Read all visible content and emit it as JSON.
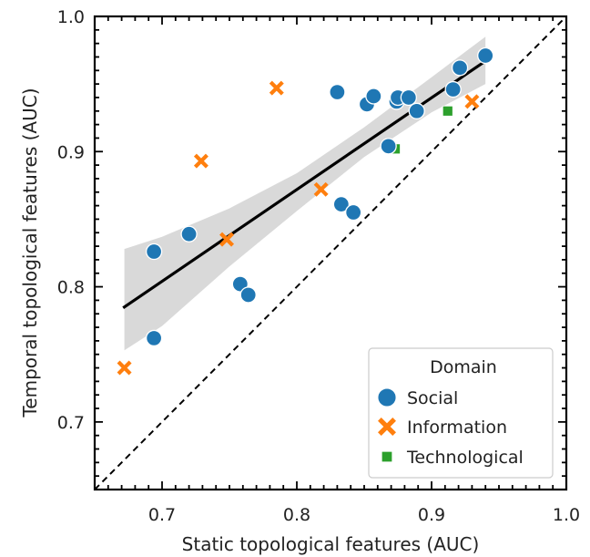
{
  "chart_data": {
    "type": "scatter",
    "title": "",
    "xlabel": "Static topological features (AUC)",
    "ylabel": "Temporal topological features (AUC)",
    "xlim": [
      0.65,
      1.0
    ],
    "ylim": [
      0.65,
      1.0
    ],
    "xticks": [
      {
        "value": 0.7,
        "label": "0.7"
      },
      {
        "value": 0.8,
        "label": "0.8"
      },
      {
        "value": 0.9,
        "label": "0.9"
      },
      {
        "value": 1.0,
        "label": "1.0"
      }
    ],
    "yticks": [
      {
        "value": 0.7,
        "label": "0.7"
      },
      {
        "value": 0.8,
        "label": "0.8"
      },
      {
        "value": 0.9,
        "label": "0.9"
      },
      {
        "value": 1.0,
        "label": "1.0"
      }
    ],
    "grid": false,
    "legend": {
      "title": "Domain",
      "position": "lower-right"
    },
    "series": [
      {
        "name": "Social",
        "marker": "circle",
        "color": "#1f77b4",
        "points": [
          {
            "x": 0.694,
            "y": 0.826
          },
          {
            "x": 0.694,
            "y": 0.762
          },
          {
            "x": 0.72,
            "y": 0.839
          },
          {
            "x": 0.758,
            "y": 0.802
          },
          {
            "x": 0.764,
            "y": 0.794
          },
          {
            "x": 0.83,
            "y": 0.944
          },
          {
            "x": 0.833,
            "y": 0.861
          },
          {
            "x": 0.842,
            "y": 0.855
          },
          {
            "x": 0.852,
            "y": 0.935
          },
          {
            "x": 0.857,
            "y": 0.941
          },
          {
            "x": 0.868,
            "y": 0.904
          },
          {
            "x": 0.874,
            "y": 0.937
          },
          {
            "x": 0.875,
            "y": 0.94
          },
          {
            "x": 0.883,
            "y": 0.94
          },
          {
            "x": 0.889,
            "y": 0.93
          },
          {
            "x": 0.916,
            "y": 0.946
          },
          {
            "x": 0.921,
            "y": 0.962
          },
          {
            "x": 0.94,
            "y": 0.971
          }
        ]
      },
      {
        "name": "Information",
        "marker": "x",
        "color": "#ff7f0e",
        "points": [
          {
            "x": 0.672,
            "y": 0.74
          },
          {
            "x": 0.729,
            "y": 0.893
          },
          {
            "x": 0.748,
            "y": 0.835
          },
          {
            "x": 0.785,
            "y": 0.947
          },
          {
            "x": 0.818,
            "y": 0.872
          },
          {
            "x": 0.93,
            "y": 0.937
          }
        ]
      },
      {
        "name": "Technological",
        "marker": "square",
        "color": "#2ca02c",
        "points": [
          {
            "x": 0.873,
            "y": 0.902
          },
          {
            "x": 0.912,
            "y": 0.93
          }
        ]
      }
    ],
    "regression": {
      "color": "#000000",
      "start": {
        "x": 0.672,
        "y": 0.785
      },
      "end": {
        "x": 0.94,
        "y": 0.967
      },
      "band_color": "#d9d9d9",
      "band_upper": [
        {
          "x": 0.672,
          "y": 0.828
        },
        {
          "x": 0.7,
          "y": 0.837
        },
        {
          "x": 0.75,
          "y": 0.858
        },
        {
          "x": 0.8,
          "y": 0.884
        },
        {
          "x": 0.85,
          "y": 0.918
        },
        {
          "x": 0.9,
          "y": 0.955
        },
        {
          "x": 0.94,
          "y": 0.985
        }
      ],
      "band_lower": [
        {
          "x": 0.94,
          "y": 0.95
        },
        {
          "x": 0.9,
          "y": 0.929
        },
        {
          "x": 0.85,
          "y": 0.896
        },
        {
          "x": 0.8,
          "y": 0.856
        },
        {
          "x": 0.75,
          "y": 0.815
        },
        {
          "x": 0.7,
          "y": 0.771
        },
        {
          "x": 0.672,
          "y": 0.753
        }
      ]
    },
    "reference_line": {
      "style": "dashed",
      "color": "#000000",
      "from": {
        "x": 0.65,
        "y": 0.65
      },
      "to": {
        "x": 1.0,
        "y": 1.0
      }
    }
  }
}
